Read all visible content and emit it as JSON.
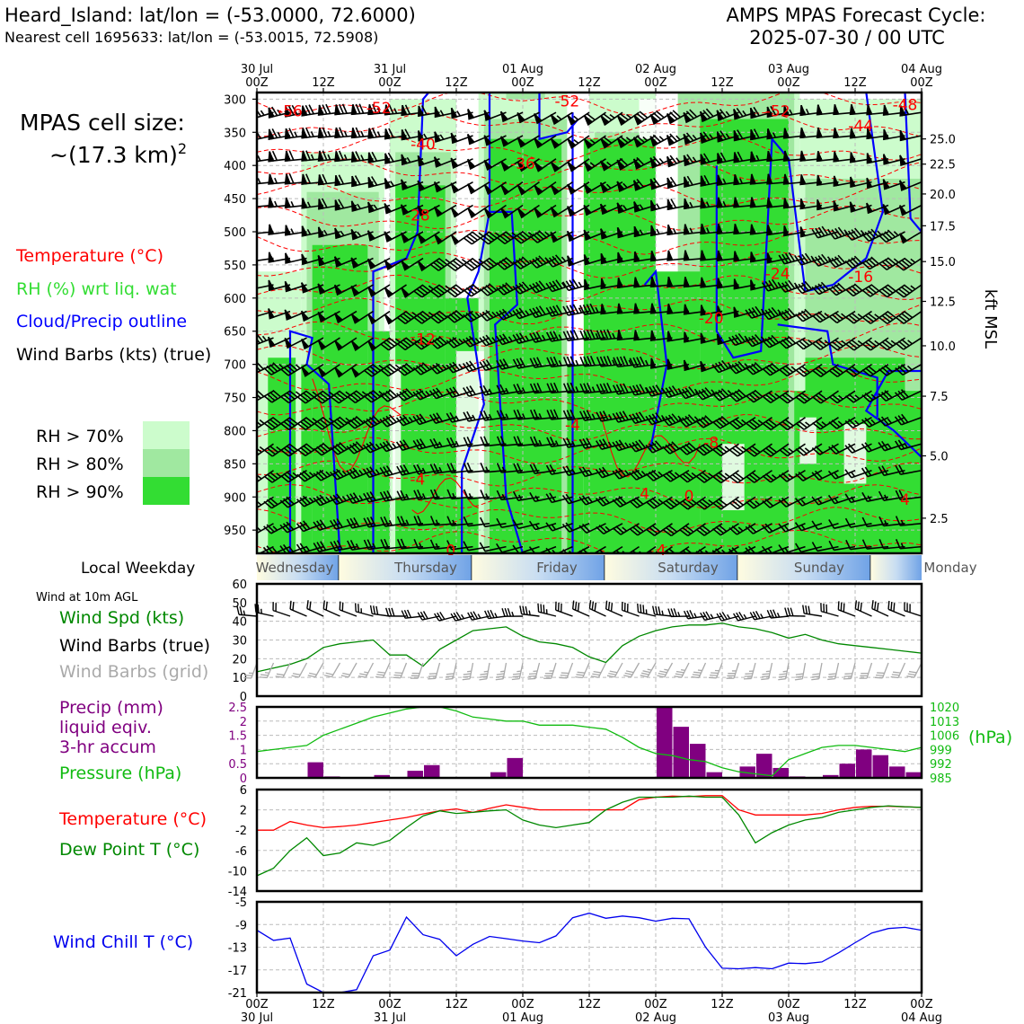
{
  "header": {
    "station_line": "Heard_Island: lat/lon = (-53.0000, 72.6000)",
    "cell_line": "Nearest cell 1695633: lat/lon = (-53.0015, 72.5908)",
    "cycle_title": "AMPS MPAS Forecast Cycle:",
    "cycle_time": "2025-07-30 / 00 UTC"
  },
  "cell_size": {
    "line1": "MPAS cell size:",
    "line2": "~(17.3 km)",
    "sup": "2"
  },
  "legend_upper": {
    "temperature": "Temperature (°C)",
    "rh": "RH (%) wrt liq. wat",
    "cloud": "Cloud/Precip outline",
    "wind": "Wind Barbs (kts) (true)",
    "rh70": "RH > 70%",
    "rh80": "RH > 80%",
    "rh90": "RH > 90%"
  },
  "colors": {
    "rh70": "#ccfccc",
    "rh80": "#a0e8a0",
    "rh90": "#33dd33",
    "temp": "#ff0000",
    "dew": "#008800",
    "pressure": "#11bb11",
    "precip": "#800080",
    "cloud": "#0000ff",
    "grid_barb": "#aaaaaa",
    "wind_chill": "#0000ee"
  },
  "time_axis": {
    "top_labels": [
      {
        "t": "30 Jul",
        "b": "00Z"
      },
      {
        "t": "",
        "b": "12Z"
      },
      {
        "t": "31 Jul",
        "b": "00Z"
      },
      {
        "t": "",
        "b": "12Z"
      },
      {
        "t": "01 Aug",
        "b": "00Z"
      },
      {
        "t": "",
        "b": "12Z"
      },
      {
        "t": "02 Aug",
        "b": "00Z"
      },
      {
        "t": "",
        "b": "12Z"
      },
      {
        "t": "03 Aug",
        "b": "00Z"
      },
      {
        "t": "",
        "b": "12Z"
      },
      {
        "t": "04 Aug",
        "b": "00Z"
      }
    ],
    "bottom_labels": [
      {
        "t": "00Z",
        "b": "30 Jul"
      },
      {
        "t": "12Z",
        "b": ""
      },
      {
        "t": "00Z",
        "b": "31 Jul"
      },
      {
        "t": "12Z",
        "b": ""
      },
      {
        "t": "00Z",
        "b": "01 Aug"
      },
      {
        "t": "12Z",
        "b": ""
      },
      {
        "t": "00Z",
        "b": "02 Aug"
      },
      {
        "t": "12Z",
        "b": ""
      },
      {
        "t": "00Z",
        "b": "03 Aug"
      },
      {
        "t": "12Z",
        "b": ""
      },
      {
        "t": "00Z",
        "b": "04 Aug"
      }
    ]
  },
  "weekday": {
    "label": "Local Weekday",
    "days": [
      "Wednesday",
      "Thursday",
      "Friday",
      "Saturday",
      "Sunday",
      "Monday"
    ]
  },
  "chart_data": [
    {
      "id": "cross_section",
      "type": "heatmap",
      "y_left_label_values": [
        300,
        350,
        400,
        450,
        500,
        550,
        600,
        650,
        700,
        750,
        800,
        850,
        900,
        950
      ],
      "y_right_label": "kft MSL",
      "y_right_values": [
        "25.0",
        "22.5",
        "20.0",
        "17.5",
        "15.0",
        "12.5",
        "10.0",
        "7.5",
        "5.0",
        "2.5"
      ],
      "y_right_pressures": [
        360,
        398,
        443,
        491,
        545,
        605,
        672,
        748,
        838,
        932
      ],
      "temp_contour_labels": [
        {
          "text": "-56",
          "h": 6,
          "p": 318
        },
        {
          "text": "-52",
          "h": 22,
          "p": 313
        },
        {
          "text": "-52",
          "h": 56,
          "p": 303
        },
        {
          "text": "-52",
          "h": 94,
          "p": 318
        },
        {
          "text": "-48",
          "h": 117,
          "p": 308
        },
        {
          "text": "-44",
          "h": 109,
          "p": 340
        },
        {
          "text": "-40",
          "h": 30,
          "p": 368
        },
        {
          "text": "-36",
          "h": 48,
          "p": 397
        },
        {
          "text": "-28",
          "h": 29,
          "p": 475
        },
        {
          "text": "-24",
          "h": 94,
          "p": 563
        },
        {
          "text": "-16",
          "h": 109,
          "p": 568
        },
        {
          "text": "-20",
          "h": 82,
          "p": 630
        },
        {
          "text": "-12",
          "h": 30,
          "p": 662
        },
        {
          "text": "-4",
          "h": 57,
          "p": 791
        },
        {
          "text": "-8",
          "h": 82,
          "p": 818
        },
        {
          "text": "-4",
          "h": 29,
          "p": 873
        },
        {
          "text": "4",
          "h": 70,
          "p": 895
        },
        {
          "text": "0",
          "h": 78,
          "p": 898
        },
        {
          "text": "4",
          "h": 117,
          "p": 904
        },
        {
          "text": "0",
          "h": 35,
          "p": 980
        },
        {
          "text": "4",
          "h": 73,
          "p": 980
        }
      ],
      "rh_threshold_values": [
        70,
        80,
        90
      ]
    },
    {
      "id": "wind_10m",
      "type": "line",
      "title": "Wind at 10m AGL",
      "legend": [
        "Wind Spd (kts)",
        "Wind Barbs (true)",
        "Wind Barbs (grid)"
      ],
      "ylim": [
        0,
        60
      ],
      "yticks": [
        0,
        10,
        20,
        30,
        40,
        50,
        60
      ],
      "x_hours": [
        0,
        3,
        6,
        9,
        12,
        15,
        18,
        21,
        24,
        27,
        30,
        33,
        36,
        39,
        42,
        45,
        48,
        51,
        54,
        57,
        60,
        63,
        66,
        69,
        72,
        75,
        78,
        81,
        84,
        87,
        90,
        93,
        96,
        99,
        102,
        105,
        108,
        111,
        114,
        117,
        120
      ],
      "series": [
        {
          "name": "Wind Spd (kts)",
          "values": [
            13,
            15,
            17,
            20,
            26,
            28,
            29,
            30,
            22,
            22,
            16,
            25,
            30,
            35,
            36,
            37,
            32,
            29,
            28,
            26,
            21,
            18,
            27,
            32,
            35,
            37,
            38,
            38,
            39,
            37,
            36,
            34,
            31,
            33,
            30,
            28,
            27,
            26,
            25,
            24,
            23
          ]
        }
      ],
      "barb_speed_kts": [
        25,
        25,
        20,
        20,
        20,
        20,
        20,
        25,
        30,
        30,
        30,
        30,
        30,
        35,
        35,
        35,
        35,
        35,
        35,
        30,
        30,
        30,
        30,
        30,
        35,
        35,
        35,
        35,
        35,
        35,
        35,
        35,
        35,
        30,
        30,
        30,
        30,
        30,
        30,
        30,
        30
      ]
    },
    {
      "id": "precip_pressure",
      "type": "bar",
      "legend": [
        "Precip (mm)",
        "liquid eqiv.",
        "3-hr accum",
        "Pressure (hPa)"
      ],
      "ylim_left": [
        0,
        2.5
      ],
      "yticks_left": [
        0,
        0.5,
        1.0,
        1.5,
        2.0,
        2.5
      ],
      "ylim_right": [
        985,
        1020
      ],
      "yticks_right": [
        985,
        992,
        999,
        1006,
        1013,
        1020
      ],
      "ylabel_right": "(hPa)",
      "x_hours": [
        0,
        3,
        6,
        9,
        12,
        15,
        18,
        21,
        24,
        27,
        30,
        33,
        36,
        39,
        42,
        45,
        48,
        51,
        54,
        57,
        60,
        63,
        66,
        69,
        72,
        75,
        78,
        81,
        84,
        87,
        90,
        93,
        96,
        99,
        102,
        105,
        108,
        111,
        114,
        117
      ],
      "precip": [
        0,
        0,
        0.0,
        0.55,
        0.05,
        0,
        0,
        0.1,
        0,
        0.25,
        0.45,
        0,
        0,
        0,
        0.2,
        0.7,
        0,
        0,
        0,
        0,
        0,
        0,
        0,
        0,
        2.5,
        1.8,
        1.2,
        0.2,
        0,
        0.4,
        0.85,
        0.35,
        0.05,
        0,
        0.1,
        0.5,
        1.0,
        0.8,
        0.4,
        0.2
      ],
      "pressure_hours": [
        0,
        3,
        6,
        9,
        12,
        15,
        18,
        21,
        24,
        27,
        30,
        33,
        36,
        39,
        42,
        45,
        48,
        51,
        54,
        57,
        60,
        63,
        66,
        69,
        72,
        75,
        78,
        81,
        84,
        87,
        90,
        93,
        96,
        99,
        102,
        105,
        108,
        111,
        114,
        117,
        120
      ],
      "pressure": [
        998,
        999,
        1000,
        1001,
        1006,
        1009,
        1012,
        1015,
        1017,
        1019,
        1020,
        1020,
        1018,
        1015,
        1014,
        1013,
        1013,
        1011,
        1011,
        1011,
        1010,
        1009,
        1005,
        1000,
        997,
        996,
        994,
        993,
        990,
        988,
        987,
        986,
        994,
        997,
        1000,
        1001,
        1001,
        1000,
        999,
        998,
        1000
      ]
    },
    {
      "id": "temp_dew",
      "type": "line",
      "legend": [
        "Temperature (°C)",
        "Dew Point T (°C)"
      ],
      "ylim": [
        -14,
        6
      ],
      "yticks": [
        -14,
        -10,
        -6,
        -2,
        2,
        6
      ],
      "x_hours": [
        0,
        3,
        6,
        9,
        12,
        15,
        18,
        21,
        24,
        27,
        30,
        33,
        36,
        39,
        42,
        45,
        48,
        51,
        54,
        57,
        60,
        63,
        66,
        69,
        72,
        75,
        78,
        81,
        84,
        87,
        90,
        93,
        96,
        99,
        102,
        105,
        108,
        111,
        114,
        117,
        120
      ],
      "series": [
        {
          "name": "Temperature (°C)",
          "values": [
            -2,
            -2,
            -0.3,
            -1,
            -1.5,
            -1.3,
            -1,
            -0.5,
            0,
            0.5,
            1.2,
            1.8,
            2.2,
            1.5,
            2.3,
            3.0,
            2.5,
            2,
            2.0,
            2.0,
            2.0,
            2.0,
            2.0,
            4.0,
            4.5,
            4.7,
            4.6,
            4.8,
            4.8,
            2.0,
            1.0,
            1.0,
            1.0,
            1.0,
            1.3,
            2.0,
            2.5,
            2.7,
            2.7,
            2.6,
            2.5
          ]
        },
        {
          "name": "Dew Point T (°C)",
          "values": [
            -11,
            -9.5,
            -6,
            -3.5,
            -7,
            -6.5,
            -4.5,
            -5,
            -4,
            -1.5,
            0.8,
            1.8,
            1.3,
            1.5,
            1.8,
            2.0,
            0,
            -1,
            -1.5,
            -1,
            -0.5,
            2.0,
            3.5,
            4.5,
            4.5,
            4.5,
            4.7,
            4.5,
            4.5,
            1.0,
            -4.5,
            -2.5,
            -1,
            0,
            0.5,
            1.5,
            2.0,
            2.5,
            2.8,
            2.6,
            2.5
          ]
        }
      ]
    },
    {
      "id": "wind_chill",
      "type": "line",
      "legend": [
        "Wind Chill T (°C)"
      ],
      "ylim": [
        -21,
        -5
      ],
      "yticks": [
        -21,
        -17,
        -13,
        -9,
        -5
      ],
      "x_hours": [
        0,
        3,
        6,
        9,
        12,
        15,
        18,
        21,
        24,
        27,
        30,
        33,
        36,
        39,
        42,
        45,
        48,
        51,
        54,
        57,
        60,
        63,
        66,
        69,
        72,
        75,
        78,
        81,
        84,
        87,
        90,
        93,
        96,
        99,
        102,
        105,
        108,
        111,
        114,
        117,
        120
      ],
      "series": [
        {
          "name": "Wind Chill T (°C)",
          "values": [
            -10,
            -11.8,
            -11.4,
            -19.5,
            -21,
            -21,
            -20.5,
            -14.5,
            -13.5,
            -7.7,
            -10.8,
            -11.6,
            -14.5,
            -12.5,
            -11.1,
            -11.5,
            -11.9,
            -12.2,
            -11,
            -7.8,
            -7.0,
            -7.9,
            -7.5,
            -7.8,
            -8.4,
            -7.9,
            -8.0,
            -13,
            -16.7,
            -16.8,
            -16.6,
            -16.8,
            -15.8,
            -15.9,
            -15.6,
            -14,
            -12.2,
            -10.5,
            -9.7,
            -9.5,
            -10
          ]
        }
      ]
    }
  ]
}
